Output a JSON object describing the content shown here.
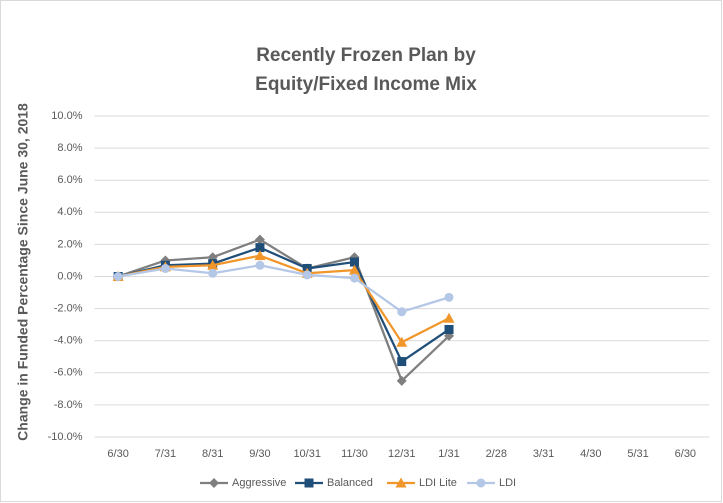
{
  "chart_data": {
    "type": "line",
    "title": [
      "Recently Frozen Plan by",
      "Equity/Fixed Income Mix"
    ],
    "y_label": "Change in Funded Percentage Since June 30, 2018",
    "categories": [
      "6/30",
      "7/31",
      "8/31",
      "9/30",
      "10/31",
      "11/30",
      "12/31",
      "1/31",
      "2/28",
      "3/31",
      "4/30",
      "5/31",
      "6/30"
    ],
    "series": [
      {
        "name": "Aggressive",
        "color": "#7f7f7f",
        "marker": "diamond",
        "values": [
          0,
          1.0,
          1.2,
          2.3,
          0.5,
          1.2,
          -6.5,
          -3.7,
          null,
          null,
          null,
          null,
          null
        ]
      },
      {
        "name": "Balanced",
        "color": "#1f4e79",
        "marker": "square",
        "values": [
          0,
          0.7,
          0.8,
          1.8,
          0.5,
          0.9,
          -5.3,
          -3.3,
          null,
          null,
          null,
          null,
          null
        ]
      },
      {
        "name": "LDI Lite",
        "color": "#f0962a",
        "marker": "triangle",
        "values": [
          0,
          0.6,
          0.7,
          1.3,
          0.2,
          0.4,
          -4.1,
          -2.6,
          null,
          null,
          null,
          null,
          null
        ]
      },
      {
        "name": "LDI",
        "color": "#b4c7e7",
        "marker": "circle",
        "values": [
          0,
          0.5,
          0.2,
          0.7,
          0.1,
          -0.1,
          -2.2,
          -1.3,
          null,
          null,
          null,
          null,
          null
        ]
      }
    ],
    "ylim": [
      -10,
      10
    ],
    "yticks": [
      {
        "value": -10,
        "label": "-10.0%"
      },
      {
        "value": -8,
        "label": "-8.0%"
      },
      {
        "value": -6,
        "label": "-6.0%"
      },
      {
        "value": -4,
        "label": "-4.0%"
      },
      {
        "value": -2,
        "label": "-2.0%"
      },
      {
        "value": 0,
        "label": "0.0%"
      },
      {
        "value": 2,
        "label": "2.0%"
      },
      {
        "value": 4,
        "label": "4.0%"
      },
      {
        "value": 6,
        "label": "6.0%"
      },
      {
        "value": 8,
        "label": "8.0%"
      },
      {
        "value": 10,
        "label": "10.0%"
      }
    ],
    "grid": true,
    "legend": "bottom"
  }
}
